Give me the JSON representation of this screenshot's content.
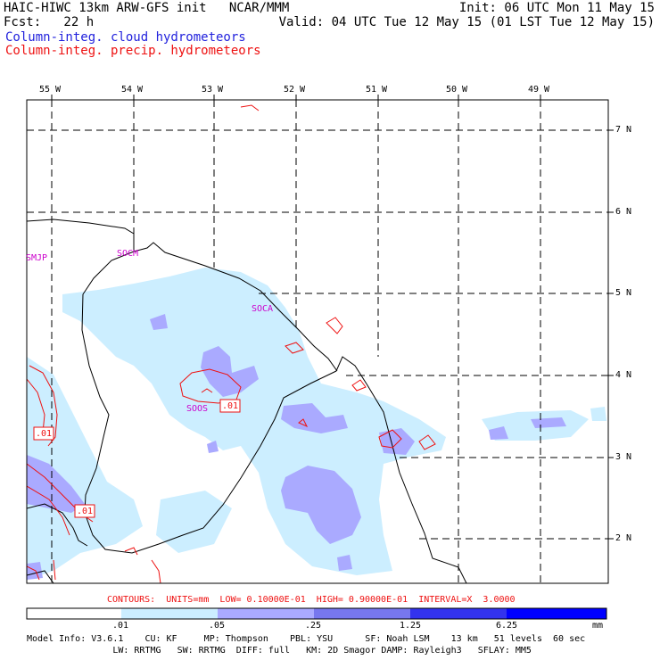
{
  "header": {
    "left_line1": "HAIC-HIWC 13km ARW-GFS init   NCAR/MMM",
    "left_line2": "Fcst:   22 h",
    "right_line1": "Init: 06 UTC Mon 11 May 15",
    "right_line2": "Valid: 04 UTC Tue 12 May 15 (01 LST Tue 12 May 15)",
    "field1": "Column-integ. cloud hydrometeors",
    "field2": "Column-integ. precip. hydrometeors",
    "field1_color": "#2222dd",
    "field2_color": "#ee1111"
  },
  "map": {
    "lon_labels": [
      "55 W",
      "54 W",
      "53 W",
      "52 W",
      "51 W",
      "50 W",
      "49 W"
    ],
    "lat_labels": [
      "7 N",
      "6 N",
      "5 N",
      "4 N",
      "3 N",
      "2 N"
    ],
    "stations": [
      "SMJP",
      "SOCM",
      "SOCA",
      "SOOS"
    ],
    "contour_labels": [
      ".01",
      ".01",
      ".01"
    ]
  },
  "contours_line": "CONTOURS:  UNITS=mm  LOW= 0.10000E-01  HIGH= 0.90000E-01  INTERVAL=X  3.0000",
  "colorbar": {
    "ticks": [
      ".01",
      ".05",
      ".25",
      "1.25",
      "6.25"
    ],
    "unit": "mm",
    "colors": [
      "#ffffff",
      "#cceeff",
      "#aaaaff",
      "#7777ee",
      "#3333ee",
      "#0000ff"
    ]
  },
  "model_info": {
    "line1": "Model Info: V3.6.1    CU: KF     MP: Thompson    PBL: YSU      SF: Noah LSM    13 km   51 levels  60 sec",
    "line2": "                LW: RRTMG   SW: RRTMG  DIFF: full   KM: 2D Smagor DAMP: Rayleigh3   SFLAY: MM5"
  }
}
